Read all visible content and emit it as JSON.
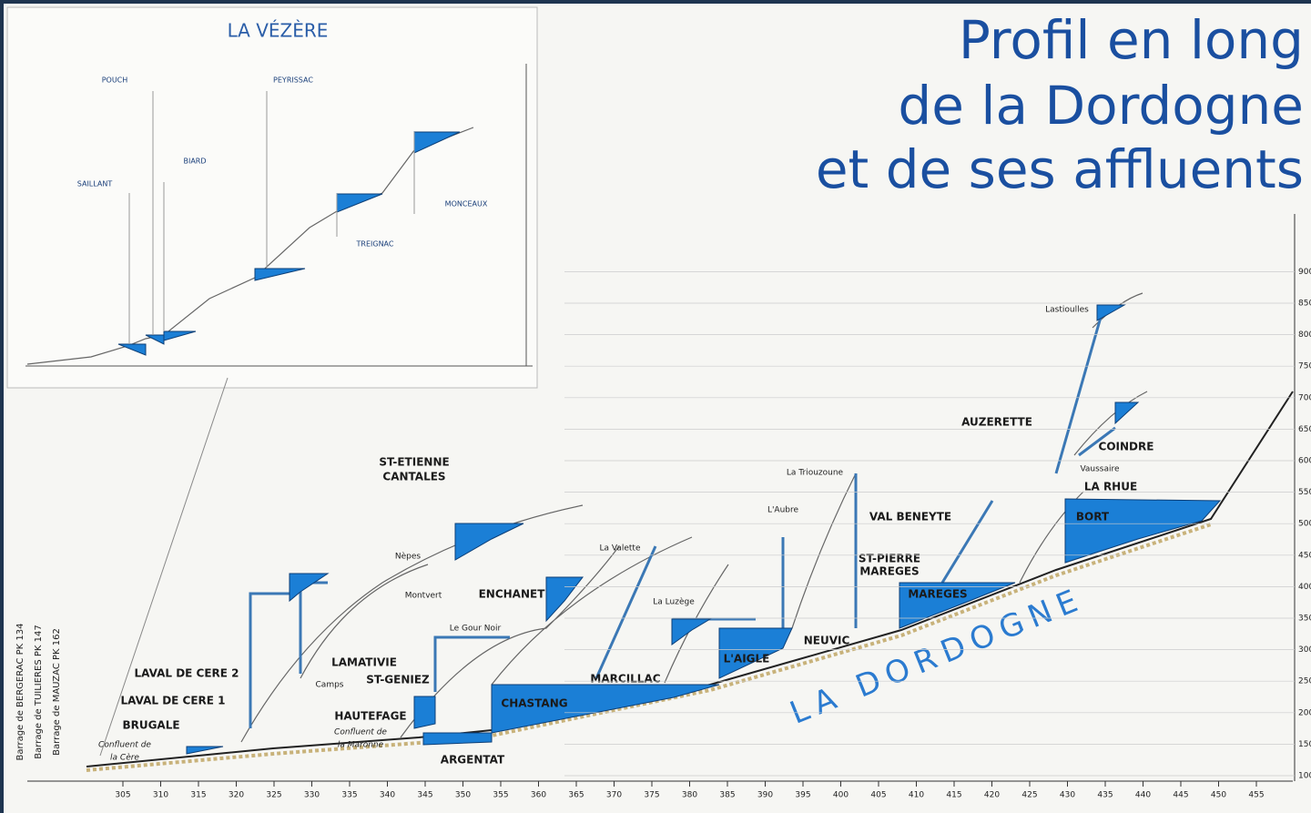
{
  "title": [
    "Profil en long",
    "de la Dordogne",
    "et de ses affluents"
  ],
  "inset": {
    "title": "LA VÉZÈRE",
    "dams": [
      "POUCH",
      "PEYRISSAC",
      "BIARD",
      "SAILLANT",
      "MONCEAUX",
      "TREIGNAC"
    ]
  },
  "dams": [
    "BRUGALE",
    "LAVAL DE CERE 1",
    "LAVAL DE CERE 2",
    "HAUTEFAGE",
    "ARGENTAT",
    "CHASTANG",
    "ST-GENIEZ",
    "LAMATIVIE",
    "ENCHANET",
    "MARCILLAC",
    "L'AIGLE",
    "NEUVIC",
    "MAREGES",
    "ST-PIERRE",
    "MAREGES",
    "VAL BENEYTE",
    "BORT",
    "LA RHUE",
    "COINDRE",
    "AUZERETTE",
    "ST-ETIENNE",
    "CANTALES"
  ],
  "places": [
    "Nèpes",
    "Montvert",
    "La Valette",
    "Le Gour Noir",
    "Camps",
    "La Luzège",
    "La Triouzoune",
    "L'Aubre",
    "Lastioulles",
    "Vaussaire",
    "Confluent de",
    "la Cère",
    "Confluent de",
    "la Maronne"
  ],
  "river_label": "LA DORDOGNE",
  "left_labels": [
    "Barrage de BERGERAC PK 134",
    "Barrage de TUILIERES PK 147",
    "Barrage de MAUZAC PK 162"
  ],
  "x_axis": [
    305,
    310,
    315,
    320,
    325,
    330,
    335,
    340,
    345,
    350,
    355,
    360,
    365,
    370,
    375,
    380,
    385,
    390,
    395,
    400,
    405,
    410,
    415,
    420,
    425,
    430,
    435,
    440,
    445,
    450,
    455
  ],
  "y_axis": [
    100,
    150,
    200,
    250,
    300,
    350,
    400,
    450,
    500,
    550,
    600,
    650,
    700,
    750,
    800,
    850,
    900
  ]
}
